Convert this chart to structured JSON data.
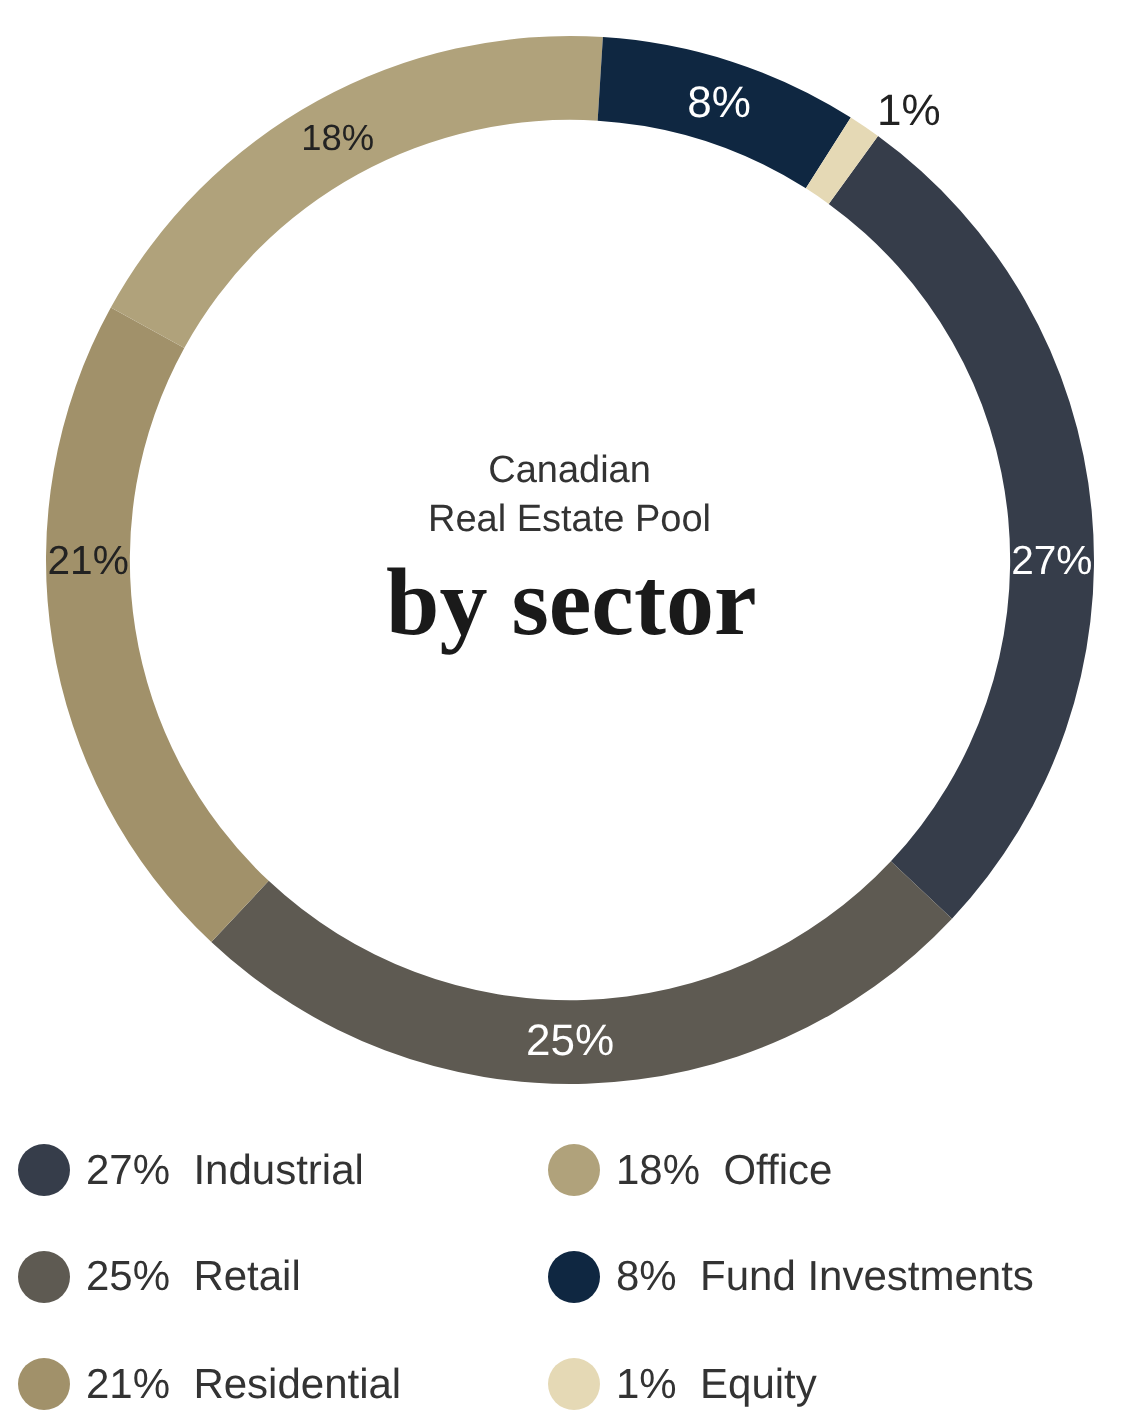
{
  "chart_data": {
    "type": "donut",
    "title": "by sector",
    "subtitle": "Canadian\nReal Estate Pool",
    "categories": [
      "Industrial",
      "Retail",
      "Residential",
      "Office",
      "Fund Investments",
      "Equity"
    ],
    "values": [
      27,
      25,
      21,
      18,
      8,
      1
    ],
    "value_labels": [
      "27%",
      "25%",
      "21%",
      "18%",
      "8%",
      "1%"
    ],
    "colors": [
      "#363d4a",
      "#5e5a52",
      "#a1916a",
      "#b0a27b",
      "#0f2741",
      "#e5d9b5"
    ],
    "legend": "bottom"
  }
}
